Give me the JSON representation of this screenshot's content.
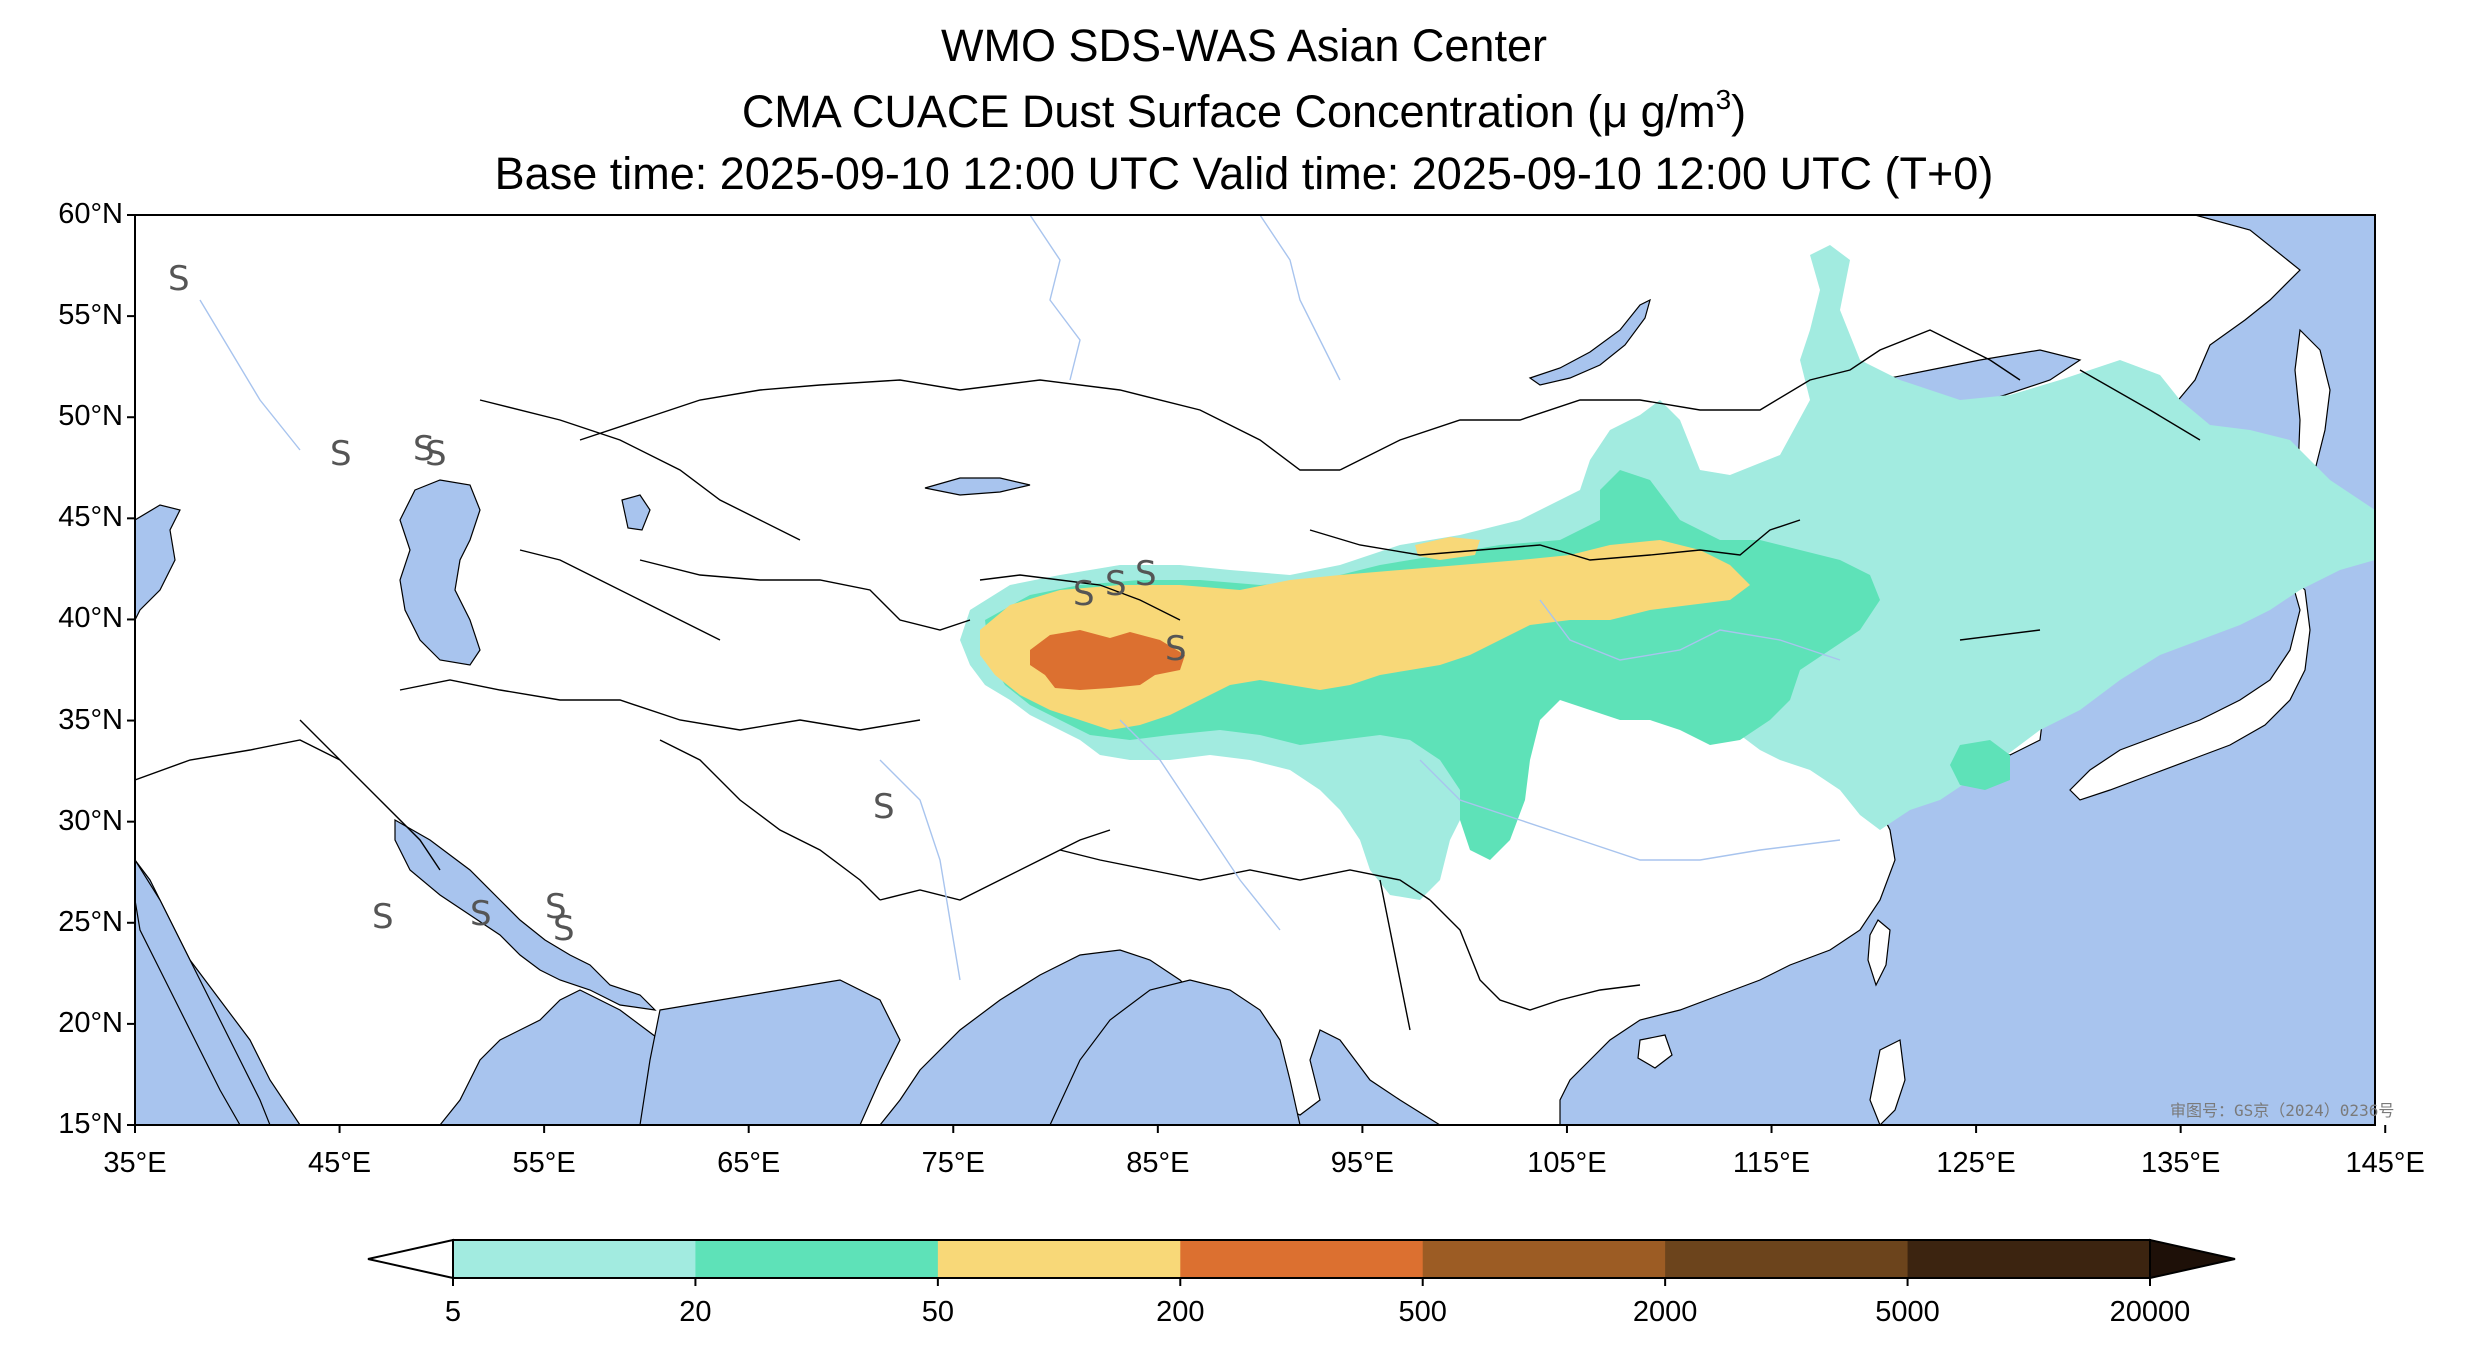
{
  "title": {
    "line1": "WMO SDS-WAS Asian Center",
    "line2_prefix": "CMA CUACE Dust Surface Concentration (",
    "line2_unit": "μ g/m",
    "line2_sup": "3",
    "line2_suffix": ")",
    "line3": "Base time: 2025-09-10 12:00 UTC Valid time: 2025-09-10 12:00 UTC (T+0)"
  },
  "axes": {
    "lat_labels": [
      "60°N",
      "55°N",
      "50°N",
      "45°N",
      "40°N",
      "35°N",
      "30°N",
      "25°N",
      "20°N",
      "15°N"
    ],
    "lon_labels": [
      "35°E",
      "45°E",
      "55°E",
      "65°E",
      "75°E",
      "85°E",
      "95°E",
      "105°E",
      "115°E",
      "125°E",
      "135°E",
      "145°E"
    ]
  },
  "colorbar": {
    "bounds": [
      "5",
      "20",
      "50",
      "200",
      "500",
      "2000",
      "5000",
      "20000"
    ],
    "colors": [
      "#a2ebe0",
      "#5ee2b8",
      "#f8d878",
      "#dc7030",
      "#9c5c24",
      "#6c441c",
      "#3c2410"
    ],
    "under_color": "#ffffff",
    "over_color": "#1e1008"
  },
  "map_colors": {
    "ocean": "#a8c4ee",
    "land": "#ffffff",
    "border": "#000000",
    "river": "#a8c4ee"
  },
  "watermark": "审图号：GS京（2024）0236号",
  "dust_station_symbol": "S"
}
